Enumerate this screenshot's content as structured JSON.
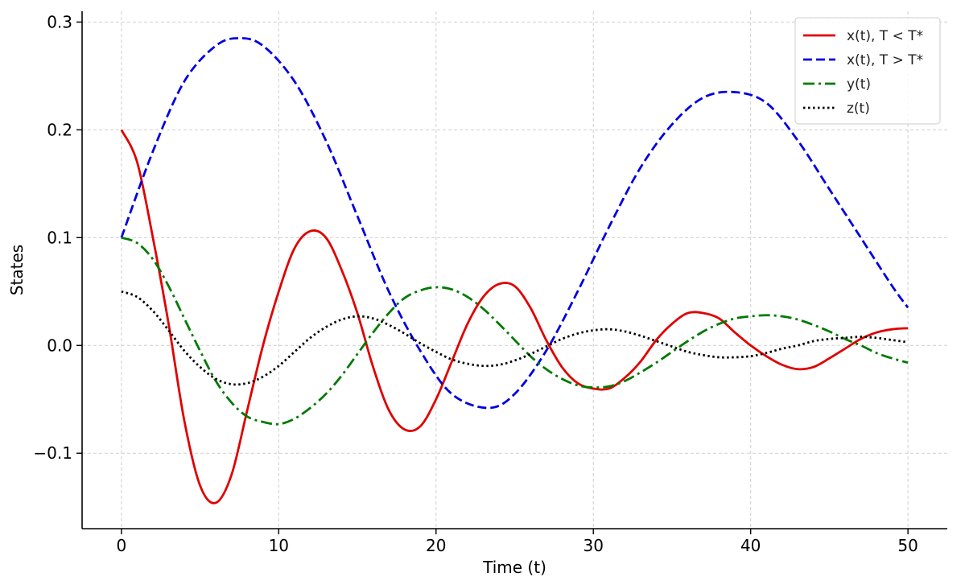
{
  "chart_data": {
    "type": "line",
    "title": "",
    "xlabel": "Time (t)",
    "ylabel": "States",
    "xlim": [
      -2.5,
      52.5
    ],
    "ylim": [
      -0.17,
      0.31
    ],
    "xticks": [
      0,
      10,
      20,
      30,
      40,
      50
    ],
    "xtick_labels": [
      "0",
      "10",
      "20",
      "30",
      "40",
      "50"
    ],
    "yticks": [
      -0.1,
      0.0,
      0.1,
      0.2,
      0.3
    ],
    "ytick_labels": [
      "−0.1",
      "0.0",
      "0.1",
      "0.2",
      "0.3"
    ],
    "grid": true,
    "legend_position": "top-right",
    "series": [
      {
        "name": "x(t), T < T*",
        "color": "#e00000",
        "style": "solid",
        "x": [
          0,
          1,
          2,
          3,
          4,
          5,
          6,
          7,
          8,
          9,
          10,
          11,
          12,
          13,
          14,
          15,
          16,
          17,
          18,
          19,
          20,
          21,
          22,
          23,
          24,
          25,
          26,
          27,
          28,
          29,
          30,
          31,
          32,
          33,
          34,
          35,
          36,
          37,
          38,
          39,
          40,
          41,
          42,
          43,
          44,
          45,
          46,
          47,
          48,
          49,
          50
        ],
        "y": [
          0.2,
          0.17,
          0.1,
          0.02,
          -0.07,
          -0.13,
          -0.146,
          -0.12,
          -0.06,
          0.0,
          0.05,
          0.09,
          0.106,
          0.1,
          0.07,
          0.03,
          -0.02,
          -0.06,
          -0.078,
          -0.075,
          -0.05,
          -0.015,
          0.02,
          0.045,
          0.057,
          0.055,
          0.035,
          0.005,
          -0.02,
          -0.035,
          -0.04,
          -0.04,
          -0.03,
          -0.015,
          0.005,
          0.02,
          0.03,
          0.03,
          0.025,
          0.012,
          0.0,
          -0.01,
          -0.018,
          -0.022,
          -0.02,
          -0.012,
          -0.003,
          0.006,
          0.012,
          0.015,
          0.016
        ]
      },
      {
        "name": "x(t), T > T*",
        "color": "#0000e0",
        "style": "dashed",
        "x": [
          0,
          2,
          4,
          6,
          7.5,
          9,
          11,
          13,
          15,
          17,
          19,
          21,
          23.3,
          25,
          27,
          29,
          31,
          33,
          35,
          37,
          39,
          41,
          43,
          45,
          47,
          49,
          50
        ],
        "y": [
          0.1,
          0.18,
          0.245,
          0.278,
          0.285,
          0.278,
          0.245,
          0.19,
          0.12,
          0.05,
          -0.005,
          -0.045,
          -0.058,
          -0.045,
          -0.005,
          0.05,
          0.11,
          0.165,
          0.205,
          0.23,
          0.235,
          0.225,
          0.19,
          0.145,
          0.1,
          0.055,
          0.035
        ]
      },
      {
        "name": "y(t)",
        "color": "#007a00",
        "style": "dashdot",
        "x": [
          0,
          1,
          2,
          3,
          4,
          5,
          6,
          7,
          8,
          9,
          10,
          11,
          12,
          13,
          14,
          15,
          16,
          17,
          18,
          19,
          20,
          21,
          22,
          23,
          24,
          25,
          26,
          27,
          28,
          29,
          30,
          31,
          32,
          33,
          34,
          35,
          36,
          37,
          38,
          39,
          40,
          41,
          42,
          43,
          44,
          45,
          46,
          47,
          48,
          49,
          50
        ],
        "y": [
          0.1,
          0.095,
          0.08,
          0.055,
          0.025,
          -0.005,
          -0.033,
          -0.053,
          -0.066,
          -0.071,
          -0.073,
          -0.068,
          -0.058,
          -0.045,
          -0.028,
          -0.008,
          0.012,
          0.03,
          0.044,
          0.051,
          0.054,
          0.052,
          0.045,
          0.034,
          0.02,
          0.005,
          -0.01,
          -0.022,
          -0.031,
          -0.037,
          -0.039,
          -0.038,
          -0.033,
          -0.025,
          -0.016,
          -0.006,
          0.004,
          0.013,
          0.02,
          0.025,
          0.027,
          0.028,
          0.027,
          0.024,
          0.019,
          0.013,
          0.006,
          0.0,
          -0.007,
          -0.012,
          -0.016
        ]
      },
      {
        "name": "z(t)",
        "color": "#000000",
        "style": "dotted",
        "x": [
          0,
          1,
          2,
          3,
          4,
          5,
          6,
          7,
          8,
          9,
          10,
          11,
          12,
          13,
          14,
          15,
          16,
          17,
          18,
          19,
          20,
          21,
          22,
          23,
          24,
          25,
          26,
          27,
          28,
          29,
          30,
          31,
          32,
          33,
          34,
          35,
          36,
          37,
          38,
          39,
          40,
          41,
          42,
          43,
          44,
          45,
          46,
          47,
          48,
          49,
          50
        ],
        "y": [
          0.05,
          0.045,
          0.032,
          0.014,
          -0.005,
          -0.02,
          -0.031,
          -0.036,
          -0.035,
          -0.029,
          -0.019,
          -0.006,
          0.007,
          0.017,
          0.024,
          0.027,
          0.025,
          0.019,
          0.011,
          0.002,
          -0.006,
          -0.013,
          -0.017,
          -0.019,
          -0.018,
          -0.014,
          -0.008,
          -0.001,
          0.006,
          0.011,
          0.014,
          0.015,
          0.013,
          0.009,
          0.004,
          -0.001,
          -0.006,
          -0.009,
          -0.011,
          -0.011,
          -0.01,
          -0.007,
          -0.003,
          0.0,
          0.004,
          0.006,
          0.007,
          0.008,
          0.007,
          0.005,
          0.003
        ]
      }
    ]
  }
}
